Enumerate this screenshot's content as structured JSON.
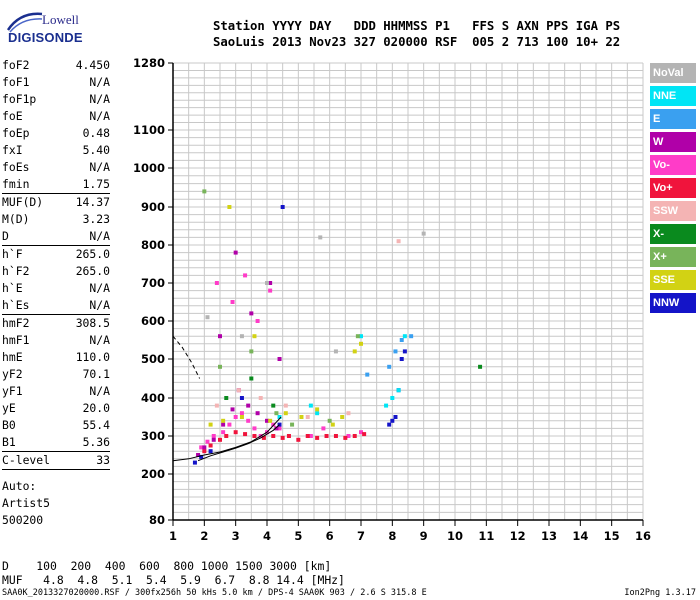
{
  "logo": {
    "line1": "Lowell",
    "line2": "DIGISONDE"
  },
  "header": {
    "line1": "Station YYYY DAY   DDD HHMMSS P1   FFS S AXN PPS IGA PS",
    "line2": "SaoLuis 2013 Nov23 327 020000 RSF  005 2 713 100 10+ 22"
  },
  "params_group1": [
    {
      "name": "foF2",
      "value": "4.450"
    },
    {
      "name": "foF1",
      "value": "N/A"
    },
    {
      "name": "foF1p",
      "value": "N/A"
    },
    {
      "name": "foE",
      "value": "N/A"
    },
    {
      "name": "foEp",
      "value": "0.48"
    },
    {
      "name": "fxI",
      "value": "5.40"
    },
    {
      "name": "foEs",
      "value": "N/A"
    },
    {
      "name": "fmin",
      "value": "1.75"
    }
  ],
  "params_group2": [
    {
      "name": "MUF(D)",
      "value": "14.37"
    },
    {
      "name": "M(D)",
      "value": "3.23"
    },
    {
      "name": "D",
      "value": "N/A"
    }
  ],
  "params_group3": [
    {
      "name": "h`F",
      "value": "265.0"
    },
    {
      "name": "h`F2",
      "value": "265.0"
    },
    {
      "name": "h`E",
      "value": "N/A"
    },
    {
      "name": "h`Es",
      "value": "N/A"
    }
  ],
  "params_group4": [
    {
      "name": "hmF2",
      "value": "308.5"
    },
    {
      "name": "hmF1",
      "value": "N/A"
    },
    {
      "name": "hmE",
      "value": "110.0"
    },
    {
      "name": "yF2",
      "value": "70.1"
    },
    {
      "name": "yF1",
      "value": "N/A"
    },
    {
      "name": "yE",
      "value": "20.0"
    },
    {
      "name": "B0",
      "value": "55.4"
    },
    {
      "name": "B1",
      "value": "5.36"
    }
  ],
  "clevel": {
    "name": "C-level",
    "value": "33"
  },
  "auto": [
    "Auto:",
    "Artist5",
    "500200"
  ],
  "dmuf": {
    "d_line": "D    100  200  400  600  800 1000 1500 3000 [km]",
    "muf_line": "MUF   4.8  4.8  5.1  5.4  5.9  6.7  8.8 14.4 [MHz]"
  },
  "footer": {
    "left": "SAA0K_2013327020000.RSF / 300fx256h 50 kHs 5.0 km / DPS-4 SAA0K 903 / 2.6 S 315.8 E",
    "right": "Ion2Png 1.3.17"
  },
  "legend": [
    {
      "label": "NoVal",
      "bg": "#b4b4b4",
      "fg": "#ffffff"
    },
    {
      "label": "NNE",
      "bg": "#00e5f5",
      "fg": "#ffffff"
    },
    {
      "label": "E",
      "bg": "#3aa0f0",
      "fg": "#ffffff"
    },
    {
      "label": "W",
      "bg": "#b000a8",
      "fg": "#ffffff"
    },
    {
      "label": "Vo-",
      "bg": "#ff3cc8",
      "fg": "#ffffff"
    },
    {
      "label": "Vo+",
      "bg": "#f0143c",
      "fg": "#ffffff"
    },
    {
      "label": "SSW",
      "bg": "#f4b4b4",
      "fg": "#ffffff"
    },
    {
      "label": "X-",
      "bg": "#0a8a1e",
      "fg": "#ffffff"
    },
    {
      "label": "X+",
      "bg": "#78b45a",
      "fg": "#ffffff"
    },
    {
      "label": "SSE",
      "bg": "#d2d214",
      "fg": "#ffffff"
    },
    {
      "label": "NNW",
      "bg": "#1414c8",
      "fg": "#ffffff"
    }
  ],
  "chart_data": {
    "type": "scatter",
    "title": "",
    "xlabel": "",
    "ylabel": "",
    "xlim": [
      1,
      16
    ],
    "x_ticks": [
      "1",
      "2",
      "3",
      "4",
      "5",
      "6",
      "7",
      "8",
      "9",
      "10",
      "11",
      "12",
      "13",
      "14",
      "15",
      "16"
    ],
    "y_axis_note": "non-linear (ionogram) height axis",
    "y_ticks": [
      "1280",
      "1100",
      "1000",
      "900",
      "800",
      "700",
      "600",
      "500",
      "400",
      "300",
      "200",
      "80"
    ],
    "grid": true,
    "series": [
      {
        "name": "Vo-",
        "color": "#ff3cc8",
        "x": [
          1.9,
          2.1,
          2.3,
          2.6,
          2.8,
          3.0,
          3.2,
          3.4,
          3.6,
          3.8,
          4.0,
          4.2,
          4.4,
          2.4,
          2.9,
          3.3,
          3.7,
          4.1,
          5.4,
          5.8,
          6.6,
          7.0
        ],
        "y": [
          270,
          285,
          300,
          310,
          330,
          350,
          360,
          340,
          320,
          300,
          310,
          330,
          320,
          700,
          650,
          720,
          600,
          680,
          300,
          320,
          300,
          310
        ]
      },
      {
        "name": "Vo+",
        "color": "#f0143c",
        "x": [
          2.0,
          2.2,
          2.5,
          2.7,
          3.0,
          3.3,
          3.6,
          3.9,
          4.2,
          4.5,
          4.7,
          5.0,
          5.3,
          5.6,
          5.9,
          6.2,
          6.5,
          6.8,
          7.1
        ],
        "y": [
          260,
          275,
          290,
          300,
          310,
          305,
          300,
          295,
          300,
          295,
          300,
          290,
          300,
          295,
          300,
          300,
          295,
          300,
          305
        ]
      },
      {
        "name": "W",
        "color": "#b000a8",
        "x": [
          1.8,
          2.0,
          2.3,
          2.6,
          2.9,
          3.1,
          3.4,
          3.7,
          4.0,
          4.3,
          2.5,
          3.0,
          3.5,
          4.1,
          4.4
        ],
        "y": [
          250,
          270,
          290,
          330,
          370,
          420,
          380,
          360,
          340,
          320,
          560,
          780,
          620,
          700,
          500
        ]
      },
      {
        "name": "NNW",
        "color": "#1414c8",
        "x": [
          1.7,
          1.9,
          2.2,
          3.2,
          4.4,
          7.9,
          8.0,
          8.1,
          8.2,
          8.3,
          8.4,
          4.5
        ],
        "y": [
          230,
          245,
          260,
          400,
          330,
          330,
          340,
          350,
          420,
          500,
          520,
          900
        ]
      },
      {
        "name": "NNE",
        "color": "#00e5f5",
        "x": [
          4.4,
          5.4,
          5.6,
          7.8,
          8.0,
          8.2,
          8.4,
          7.0
        ],
        "y": [
          350,
          380,
          360,
          380,
          400,
          420,
          560,
          560
        ]
      },
      {
        "name": "E",
        "color": "#3aa0f0",
        "x": [
          7.9,
          8.1,
          8.3,
          8.6,
          7.2
        ],
        "y": [
          480,
          520,
          550,
          560,
          460
        ]
      },
      {
        "name": "SSE",
        "color": "#d2d214",
        "x": [
          2.2,
          2.6,
          3.2,
          4.1,
          4.6,
          5.1,
          5.6,
          6.1,
          6.4,
          6.8,
          7.0,
          2.8,
          3.6
        ],
        "y": [
          330,
          340,
          350,
          340,
          360,
          350,
          370,
          330,
          350,
          520,
          540,
          900,
          560
        ]
      },
      {
        "name": "X+",
        "color": "#78b45a",
        "x": [
          2.0,
          2.5,
          3.5,
          4.3,
          4.8,
          6.0,
          6.9
        ],
        "y": [
          940,
          480,
          520,
          360,
          330,
          340,
          560
        ]
      },
      {
        "name": "X-",
        "color": "#0a8a1e",
        "x": [
          2.7,
          3.5,
          4.2,
          10.8
        ],
        "y": [
          400,
          450,
          380,
          480
        ]
      },
      {
        "name": "SSW",
        "color": "#f4b4b4",
        "x": [
          2.4,
          3.1,
          3.8,
          4.6,
          5.3,
          6.6,
          8.2
        ],
        "y": [
          380,
          420,
          400,
          380,
          350,
          360,
          810
        ]
      },
      {
        "name": "NoVal",
        "color": "#b4b4b4",
        "x": [
          2.1,
          3.2,
          4.0,
          5.7,
          6.2,
          9.0
        ],
        "y": [
          610,
          560,
          700,
          820,
          520,
          830
        ]
      }
    ],
    "curves": [
      {
        "name": "trace1",
        "color": "#000000",
        "x": [
          1.0,
          1.5,
          2.0,
          2.5,
          3.0,
          3.5,
          4.0,
          4.45
        ],
        "y": [
          235,
          240,
          250,
          258,
          270,
          285,
          310,
          350
        ]
      },
      {
        "name": "trace2",
        "color": "#000000",
        "x": [
          1.8,
          2.2,
          2.6,
          3.0,
          3.4,
          3.8,
          4.2,
          4.4
        ],
        "y": [
          235,
          248,
          258,
          268,
          280,
          295,
          315,
          330
        ]
      },
      {
        "name": "trace3_dashed",
        "color": "#000000",
        "x": [
          1.0,
          1.3,
          1.6,
          1.85
        ],
        "y": [
          560,
          530,
          490,
          450
        ]
      }
    ]
  }
}
